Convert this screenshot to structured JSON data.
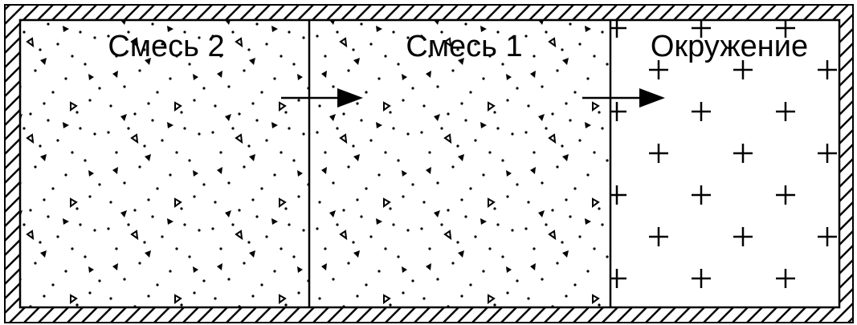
{
  "compartments": [
    {
      "label": "Смесь 2"
    },
    {
      "label": "Смесь 1"
    },
    {
      "label": "Окружение"
    }
  ]
}
